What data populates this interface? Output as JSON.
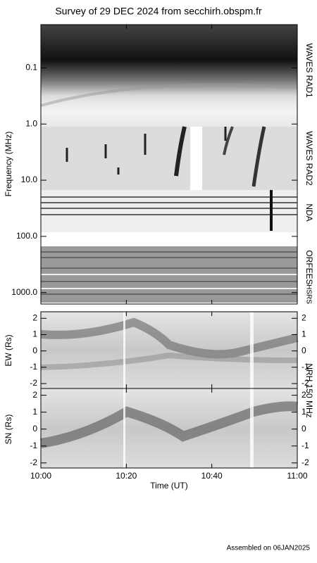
{
  "title": "Survey of 29 DEC 2024 from secchirh.obspm.fr",
  "footer": "Assembled on 06JAN2025",
  "x_label": "Time (UT)",
  "xlim": [
    "10:00",
    "11:00"
  ],
  "xticks": [
    "10:00",
    "10:20",
    "10:40",
    "11:00"
  ],
  "chart_data": [
    {
      "type": "spectrogram",
      "y_label": "Frequency (MHz)",
      "log_y": true,
      "y_inverted": true,
      "ylim": [
        0.017,
        1600
      ],
      "yticks": [
        0.1,
        {
          "value": 1,
          "label": "1.0"
        },
        {
          "value": 10,
          "label": "10.0"
        },
        {
          "value": 100,
          "label": "100.0"
        },
        {
          "value": 1000,
          "label": "1000.0"
        }
      ],
      "instruments": [
        "WAVES RAD1",
        "WAVES RAD2",
        "NDA",
        "ORFEES",
        "HSRS"
      ]
    },
    {
      "type": "spectrogram",
      "y_label": "EW (Rs)",
      "ylim": [
        -2.3,
        2.4
      ],
      "yticks": [
        -2,
        -1,
        0,
        1,
        2
      ]
    },
    {
      "type": "spectrogram",
      "y_label": "SN (Rs)",
      "ylim": [
        -2.3,
        2.4
      ],
      "yticks": [
        -2,
        -1,
        0,
        1,
        2
      ],
      "instrument": "NRH 150 MHz"
    }
  ]
}
